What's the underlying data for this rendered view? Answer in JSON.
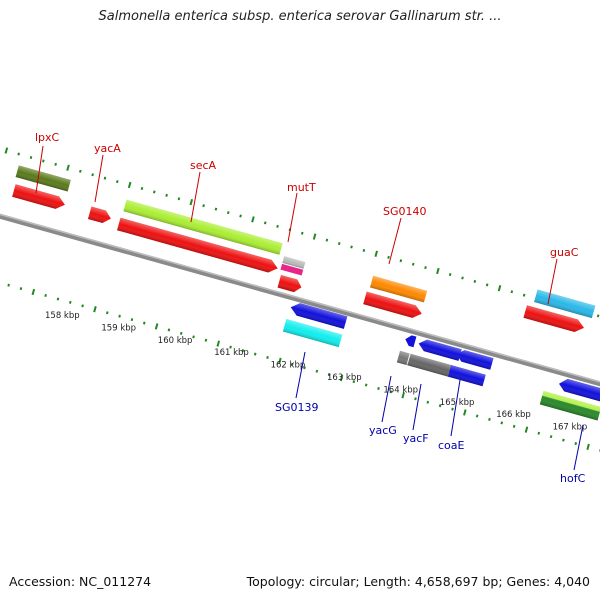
{
  "title": "Salmonella enterica subsp. enterica serovar Gallinarum str. ...",
  "footer": {
    "accession": "Accession: NC_011274",
    "topology": "Topology: circular; Length: 4,658,697 bp; Genes: 4,040"
  },
  "scale_labels": [
    "158 kbp",
    "159 kbp",
    "160 kbp",
    "161 kbp",
    "162 kbp",
    "163 kbp",
    "164 kbp",
    "165 kbp",
    "166 kbp",
    "167 kbp"
  ],
  "colors": {
    "red": "#ee1111",
    "lime": "#aaee33",
    "olive": "#5a7a1c",
    "orange": "#ff8800",
    "sky": "#2ab8e8",
    "cyan": "#11eeee",
    "blue": "#1111dd",
    "gray": "#666666",
    "lightgray": "#bbbbbb",
    "magenta": "#e8268a",
    "green": "#2a8a2a",
    "forward_label": "#cc0000",
    "reverse_label": "#0000aa",
    "backbone": "#888888",
    "tick": "#228822"
  },
  "forward_labels": [
    "lpxC",
    "yacA",
    "secA",
    "mutT",
    "SG0140",
    "guaC"
  ],
  "reverse_labels": [
    "SG0139",
    "yacG",
    "yacF",
    "coaE",
    "hofC"
  ]
}
